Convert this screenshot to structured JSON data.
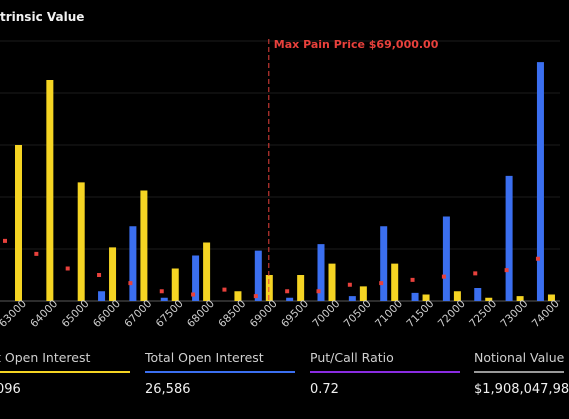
{
  "header": {
    "title": "trinsic Value"
  },
  "chart_data": {
    "type": "bar",
    "max_pain_label": "Max Pain Price $69,000.00",
    "max_pain_strike": "69000",
    "categories": [
      "63000",
      "64000",
      "65000",
      "66000",
      "67000",
      "67500",
      "68000",
      "68500",
      "69000",
      "69500",
      "70000",
      "70500",
      "71000",
      "71500",
      "72000",
      "72500",
      "73000",
      "74000"
    ],
    "series": [
      {
        "color": "#f5d423",
        "values": [
          96,
          136,
          73,
          33,
          68,
          20,
          36,
          6,
          16,
          16,
          23,
          9,
          23,
          4,
          6,
          2,
          3,
          4
        ]
      },
      {
        "color": "#3b6ff0",
        "values": [
          0,
          0,
          0,
          6,
          46,
          2,
          28,
          0,
          31,
          2,
          35,
          3,
          46,
          5,
          52,
          8,
          77,
          147
        ]
      },
      {
        "color": "#e8413c",
        "values": [
          37,
          29,
          20,
          16,
          11,
          6,
          4,
          7,
          3,
          6,
          6,
          10,
          11,
          13,
          15,
          17,
          19,
          26
        ]
      }
    ],
    "ylim": [
      0,
      160
    ]
  },
  "stats": [
    {
      "label": "t Open Interest",
      "value": "096",
      "color": "#f5d423"
    },
    {
      "label": "Total Open Interest",
      "value": "26,586",
      "color": "#3b6ff0"
    },
    {
      "label": "Put/Call Ratio",
      "value": "0.72",
      "color": "#8a2be2"
    },
    {
      "label": "Notional Value",
      "value": "$1,908,047,98",
      "color": "#9a9a9a"
    }
  ]
}
